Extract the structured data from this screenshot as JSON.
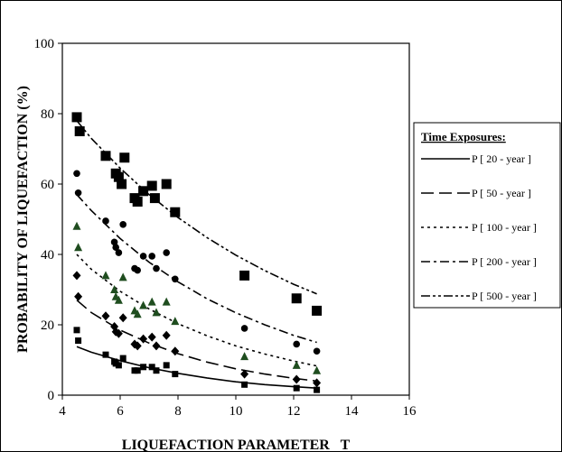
{
  "chart_data": {
    "type": "scatter",
    "title": "",
    "xlabel": "LIQUEFACTION PARAMETER   T",
    "ylabel": "PROBABILITY OF LIQUEFACTION (%)",
    "xlim": [
      4,
      16
    ],
    "ylim": [
      0,
      100
    ],
    "xticks": [
      "4",
      "6",
      "8",
      "10",
      "12",
      "14",
      "16"
    ],
    "yticks": [
      "0",
      "20",
      "40",
      "60",
      "80",
      "100"
    ],
    "grid": false,
    "legend": {
      "title": "Time Exposures:",
      "placement": "right",
      "entries": [
        {
          "label": "P [ 20 - year ]",
          "dash": "solid"
        },
        {
          "label": "P [ 50 - year ]",
          "dash": "long-dash"
        },
        {
          "label": "P [ 100 - year ]",
          "dash": "dotted"
        },
        {
          "label": "P [ 200 - year ]",
          "dash": "dash-dot"
        },
        {
          "label": "P [ 500 - year ]",
          "dash": "dash-dot-dot"
        }
      ]
    },
    "colors": {
      "black": "#000000",
      "triangle": "#1f4d1f"
    },
    "curves": [
      {
        "dash": "solid",
        "x": [
          4.5,
          5,
          6,
          7,
          8,
          9,
          10,
          11,
          12,
          12.8
        ],
        "y": [
          13.8,
          12.2,
          9.8,
          7.8,
          6.2,
          4.9,
          3.8,
          3.0,
          2.4,
          2.0
        ]
      },
      {
        "dash": "long-dash",
        "x": [
          4.5,
          5,
          6,
          7,
          8,
          9,
          10,
          11,
          12,
          12.8
        ],
        "y": [
          27,
          23.5,
          18.5,
          14.8,
          11.8,
          9.4,
          7.5,
          6.0,
          4.8,
          4.0
        ]
      },
      {
        "dash": "dotted",
        "x": [
          4.5,
          5,
          6,
          7,
          8,
          9,
          10,
          11,
          12,
          12.8
        ],
        "y": [
          40,
          35.8,
          29.5,
          24.5,
          20.3,
          16.9,
          14.0,
          11.7,
          9.7,
          8.3
        ]
      },
      {
        "dash": "dash-dot",
        "x": [
          4.5,
          5,
          6,
          7,
          8,
          9,
          10,
          11,
          12,
          12.8
        ],
        "y": [
          57,
          52.5,
          44.5,
          37.8,
          32.2,
          27.4,
          23.4,
          20.0,
          17.0,
          15.0
        ]
      },
      {
        "dash": "dash-dot-dot",
        "x": [
          4.5,
          5,
          6,
          7,
          8,
          9,
          10,
          11,
          12,
          12.8
        ],
        "y": [
          78,
          73,
          64.5,
          57,
          50.5,
          44.8,
          39.8,
          35.4,
          31.5,
          28.8
        ]
      }
    ],
    "points": [
      {
        "marker": "square-large",
        "x": [
          4.5,
          4.6,
          5.5,
          5.85,
          5.95,
          6.05,
          6.15,
          6.5,
          6.6,
          6.8,
          7.1,
          7.2,
          7.6,
          7.9,
          10.3,
          12.1,
          12.8
        ],
        "y": [
          79,
          75,
          68,
          63,
          62,
          60,
          67.5,
          56,
          55,
          58,
          59.5,
          56,
          60,
          52,
          34,
          27.5,
          24
        ]
      },
      {
        "marker": "circle",
        "x": [
          4.5,
          4.55,
          5.5,
          5.8,
          5.85,
          5.95,
          6.1,
          6.5,
          6.6,
          6.8,
          7.1,
          7.25,
          7.6,
          7.9,
          10.3,
          12.1,
          12.8
        ],
        "y": [
          63,
          57.5,
          49.5,
          43.5,
          42,
          40.5,
          48.5,
          36,
          35.5,
          39.5,
          39.5,
          36,
          40.5,
          33,
          19,
          14.5,
          12.5
        ]
      },
      {
        "marker": "triangle",
        "x": [
          4.5,
          4.55,
          5.5,
          5.8,
          5.85,
          5.95,
          6.1,
          6.5,
          6.6,
          6.8,
          7.1,
          7.25,
          7.6,
          7.9,
          10.3,
          12.1,
          12.8
        ],
        "y": [
          48,
          42,
          34,
          30,
          28,
          27,
          33.5,
          24,
          23,
          25.5,
          26.5,
          23.5,
          26.5,
          21,
          11,
          8.5,
          7
        ]
      },
      {
        "marker": "diamond",
        "x": [
          4.5,
          4.55,
          5.5,
          5.8,
          5.85,
          5.95,
          6.1,
          6.5,
          6.6,
          6.8,
          7.1,
          7.25,
          7.6,
          7.9,
          10.3,
          12.1,
          12.8
        ],
        "y": [
          34,
          28,
          22.5,
          19.5,
          18,
          17.5,
          22,
          14.5,
          14,
          16,
          16.5,
          14,
          17,
          12.5,
          6,
          4.5,
          3.5
        ]
      },
      {
        "marker": "square-small",
        "x": [
          4.5,
          4.55,
          5.5,
          5.8,
          5.85,
          5.95,
          6.1,
          6.5,
          6.6,
          6.8,
          7.1,
          7.25,
          7.6,
          7.9,
          10.3,
          12.1,
          12.8
        ],
        "y": [
          18.5,
          15.5,
          11.5,
          9.5,
          9,
          8.5,
          10.5,
          7,
          7,
          8,
          8,
          7,
          8.5,
          6,
          3,
          2,
          1.5
        ]
      }
    ]
  }
}
